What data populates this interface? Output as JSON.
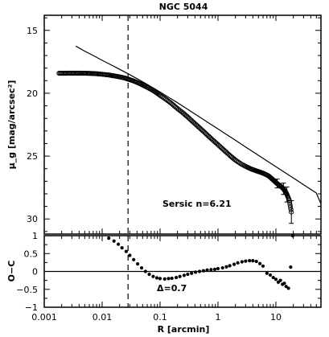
{
  "chart_data": [
    {
      "type": "scatter",
      "title": "NGC 5044",
      "xlabel": "",
      "ylabel": "μ_g [mag/arcsec²]",
      "xscale": "log",
      "xlim": [
        0.001,
        60
      ],
      "ylim": [
        31.2,
        13.8
      ],
      "y_inverted": true,
      "yticks": [
        15,
        20,
        25,
        30
      ],
      "annotation": "Sersic n=6.21",
      "vline_x": 0.028,
      "series": [
        {
          "kind": "points",
          "x": [
            0.0018,
            0.0022,
            0.0027,
            0.0033,
            0.004,
            0.005,
            0.006,
            0.0075,
            0.009,
            0.011,
            0.0135,
            0.016,
            0.02,
            0.025,
            0.03,
            0.037,
            0.045,
            0.055,
            0.068,
            0.083,
            0.1,
            0.125,
            0.155,
            0.19,
            0.24,
            0.3,
            0.37,
            0.46,
            0.57,
            0.7,
            0.87,
            1.08,
            1.33,
            1.65,
            2.0,
            2.5,
            3.1,
            3.8,
            4.5,
            5.3,
            6.3,
            7.5,
            8.5,
            9.5,
            10.5,
            11.5,
            12.5,
            13.5,
            14.5,
            15.5,
            17.0,
            18.5
          ],
          "y": [
            18.41,
            18.41,
            18.4,
            18.4,
            18.4,
            18.41,
            18.42,
            18.44,
            18.47,
            18.51,
            18.56,
            18.62,
            18.7,
            18.8,
            18.92,
            19.07,
            19.24,
            19.44,
            19.66,
            19.9,
            20.17,
            20.47,
            20.79,
            21.14,
            21.51,
            21.89,
            22.28,
            22.67,
            23.06,
            23.45,
            23.84,
            24.23,
            24.61,
            25.0,
            25.32,
            25.62,
            25.85,
            26.04,
            26.16,
            26.27,
            26.4,
            26.58,
            26.8,
            27.0,
            27.18,
            27.32,
            27.45,
            27.6,
            27.8,
            28.05,
            28.5,
            29.45
          ]
        },
        {
          "kind": "line",
          "x": [
            0.0035,
            0.005,
            0.007,
            0.01,
            0.015,
            0.02,
            0.03,
            0.05,
            0.07,
            0.1,
            0.15,
            0.2,
            0.3,
            0.5,
            0.7,
            1,
            1.5,
            2,
            3,
            5,
            7,
            10,
            15,
            20,
            30,
            50,
            60
          ],
          "y": [
            16.25,
            16.65,
            17.0,
            17.38,
            17.8,
            18.1,
            18.52,
            19.09,
            19.48,
            19.9,
            20.4,
            20.76,
            21.28,
            21.94,
            22.38,
            22.84,
            23.37,
            23.74,
            24.27,
            24.94,
            25.38,
            25.84,
            26.37,
            26.74,
            27.27,
            27.94,
            28.8
          ]
        }
      ]
    },
    {
      "type": "scatter",
      "xlabel": "R [arcmin]",
      "ylabel": "O−C",
      "xscale": "log",
      "xlim": [
        0.001,
        60
      ],
      "ylim": [
        -1,
        1
      ],
      "xticklabels": [
        "0.001",
        "0.01",
        "0.1",
        "1",
        "10"
      ],
      "yticks": [
        1,
        0.5,
        0,
        -0.5,
        -1
      ],
      "yticklabels": [
        "1",
        "0.5",
        "0",
        "−0.5",
        "−1"
      ],
      "annotation": "Δ=0.7",
      "vline_x": 0.028,
      "hline_y": 0,
      "series": [
        {
          "kind": "points",
          "x": [
            0.013,
            0.016,
            0.019,
            0.022,
            0.026,
            0.03,
            0.035,
            0.041,
            0.048,
            0.056,
            0.065,
            0.076,
            0.088,
            0.1,
            0.12,
            0.14,
            0.16,
            0.19,
            0.22,
            0.26,
            0.3,
            0.35,
            0.41,
            0.48,
            0.56,
            0.65,
            0.76,
            0.88,
            1.0,
            1.2,
            1.4,
            1.6,
            1.9,
            2.2,
            2.6,
            3.0,
            3.5,
            4.0,
            4.6,
            5.3,
            6.0,
            7.0,
            8.0,
            9.0,
            10.0,
            11.0,
            12.0,
            13.0,
            14.0,
            15.0,
            16.5,
            18.0,
            19.5
          ],
          "y": [
            0.93,
            0.85,
            0.76,
            0.66,
            0.56,
            0.45,
            0.33,
            0.21,
            0.1,
            0.0,
            -0.08,
            -0.14,
            -0.18,
            -0.2,
            -0.21,
            -0.2,
            -0.19,
            -0.17,
            -0.14,
            -0.11,
            -0.08,
            -0.05,
            -0.02,
            0.0,
            0.02,
            0.04,
            0.05,
            0.06,
            0.08,
            0.1,
            0.13,
            0.16,
            0.2,
            0.24,
            0.27,
            0.29,
            0.3,
            0.3,
            0.28,
            0.22,
            0.15,
            -0.05,
            -0.1,
            -0.17,
            -0.22,
            -0.3,
            -0.25,
            -0.36,
            -0.33,
            -0.42,
            -0.47,
            0.12,
            1.0
          ]
        }
      ]
    }
  ]
}
